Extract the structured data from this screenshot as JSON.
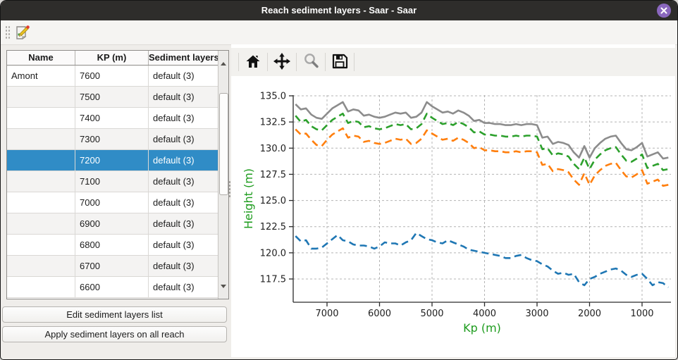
{
  "window": {
    "title": "Reach sediment layers - Saar - Saar"
  },
  "icons": {
    "window_close": "close-circle",
    "toolbar_edit": "edit-document-pencil",
    "nav": [
      "home",
      "pan-arrows",
      "zoom-magnifier",
      "save-floppy"
    ],
    "scroll_up": "arrow-up",
    "scroll_down": "arrow-down"
  },
  "table": {
    "headers": [
      "Name",
      "KP (m)",
      "Sediment layers"
    ],
    "selected_kp": "7200",
    "rows": [
      {
        "name": "Amont",
        "kp": "7600",
        "layers": "default (3)"
      },
      {
        "name": "",
        "kp": "7500",
        "layers": "default (3)"
      },
      {
        "name": "",
        "kp": "7400",
        "layers": "default (3)"
      },
      {
        "name": "",
        "kp": "7300",
        "layers": "default (3)"
      },
      {
        "name": "",
        "kp": "7200",
        "layers": "default (3)"
      },
      {
        "name": "",
        "kp": "7100",
        "layers": "default (3)"
      },
      {
        "name": "",
        "kp": "7000",
        "layers": "default (3)"
      },
      {
        "name": "",
        "kp": "6900",
        "layers": "default (3)"
      },
      {
        "name": "",
        "kp": "6800",
        "layers": "default (3)"
      },
      {
        "name": "",
        "kp": "6700",
        "layers": "default (3)"
      },
      {
        "name": "",
        "kp": "6600",
        "layers": "default (3)"
      }
    ]
  },
  "buttons": {
    "edit": "Edit sediment layers list",
    "apply": "Apply sediment layers on all reach"
  },
  "chart_data": {
    "type": "line",
    "title": "",
    "xlabel": "Kp (m)",
    "ylabel": "Height (m)",
    "label_color": "#1e9c1e",
    "grid": true,
    "x_axis_reversed": true,
    "xlim": [
      7650,
      480
    ],
    "ylim": [
      115.3,
      135.05
    ],
    "xticks": [
      7000,
      6000,
      5000,
      4000,
      3000,
      2000,
      1000
    ],
    "yticks": [
      135.0,
      132.5,
      130.0,
      127.5,
      125.0,
      122.5,
      120.0,
      117.5
    ],
    "x": [
      7600,
      7500,
      7400,
      7300,
      7200,
      7100,
      7000,
      6900,
      6800,
      6700,
      6600,
      6500,
      6400,
      6300,
      6200,
      6100,
      6000,
      5900,
      5800,
      5700,
      5600,
      5500,
      5400,
      5300,
      5200,
      5100,
      5000,
      4900,
      4800,
      4700,
      4600,
      4500,
      4400,
      4300,
      4200,
      4100,
      4000,
      3900,
      3800,
      3700,
      3600,
      3500,
      3400,
      3300,
      3200,
      3100,
      3000,
      2900,
      2800,
      2700,
      2600,
      2500,
      2400,
      2300,
      2200,
      2100,
      2000,
      1900,
      1800,
      1700,
      1600,
      1500,
      1400,
      1300,
      1200,
      1100,
      1000,
      900,
      800,
      700,
      600,
      500
    ],
    "series": [
      {
        "name": "blue-dashed-bottom",
        "color": "#1f77b4",
        "dashed": true,
        "values": [
          121.6,
          121.1,
          121.2,
          120.4,
          120.4,
          120.5,
          120.9,
          121.3,
          121.7,
          121.2,
          121.1,
          120.8,
          120.7,
          120.7,
          120.6,
          120.4,
          120.6,
          121.0,
          120.9,
          120.9,
          120.7,
          121.0,
          121.2,
          121.9,
          121.6,
          121.3,
          121.2,
          121.0,
          120.9,
          121.2,
          121.0,
          120.8,
          120.6,
          120.3,
          120.2,
          120.1,
          120.0,
          119.9,
          119.8,
          119.7,
          119.5,
          119.5,
          119.7,
          119.8,
          119.5,
          119.3,
          119.2,
          118.9,
          118.7,
          118.3,
          118.0,
          118.1,
          117.9,
          118.0,
          117.2,
          116.9,
          117.5,
          117.7,
          118.0,
          118.2,
          118.4,
          118.5,
          118.3,
          117.9,
          117.7,
          117.9,
          118.0,
          117.5,
          116.9,
          117.2,
          117.1,
          116.7
        ]
      },
      {
        "name": "orange-dashed",
        "color": "#ff7f0e",
        "dashed": true,
        "values": [
          131.8,
          131.3,
          131.4,
          130.8,
          130.3,
          130.2,
          130.8,
          131.3,
          131.6,
          131.9,
          131.0,
          131.2,
          131.1,
          130.6,
          130.7,
          130.5,
          130.4,
          130.5,
          130.7,
          130.9,
          130.8,
          130.9,
          130.4,
          130.5,
          130.9,
          131.7,
          131.4,
          131.1,
          130.8,
          130.9,
          130.7,
          131.0,
          130.8,
          130.5,
          130.0,
          130.1,
          129.8,
          129.8,
          129.7,
          129.7,
          129.6,
          129.6,
          129.7,
          129.6,
          129.7,
          129.7,
          129.6,
          128.4,
          128.5,
          127.8,
          128.0,
          127.9,
          127.7,
          127.0,
          126.5,
          127.6,
          126.5,
          127.4,
          127.9,
          128.3,
          128.5,
          128.6,
          127.9,
          127.3,
          127.2,
          127.5,
          127.9,
          126.6,
          126.8,
          127.0,
          126.4,
          126.5
        ]
      },
      {
        "name": "green-dashed",
        "color": "#2ca02c",
        "dashed": true,
        "values": [
          133.1,
          132.5,
          132.7,
          132.1,
          131.8,
          131.7,
          132.2,
          132.7,
          133.0,
          133.3,
          132.4,
          132.6,
          132.5,
          132.0,
          132.1,
          131.9,
          131.8,
          131.9,
          132.1,
          132.3,
          132.2,
          132.3,
          131.8,
          131.9,
          132.3,
          133.3,
          132.9,
          132.6,
          132.3,
          132.4,
          132.2,
          132.5,
          132.3,
          132.0,
          131.5,
          131.6,
          131.3,
          131.3,
          131.2,
          131.2,
          131.1,
          131.1,
          131.2,
          131.1,
          131.2,
          131.2,
          131.1,
          129.9,
          130.0,
          129.3,
          129.5,
          129.4,
          129.2,
          128.5,
          128.0,
          129.1,
          128.0,
          128.9,
          129.4,
          129.8,
          130.0,
          130.1,
          129.4,
          128.8,
          128.7,
          129.0,
          129.4,
          128.1,
          128.3,
          128.5,
          127.9,
          128.0
        ]
      },
      {
        "name": "gray-solid-top",
        "color": "#8c8c8c",
        "dashed": false,
        "values": [
          134.2,
          133.7,
          133.8,
          133.2,
          132.9,
          132.8,
          133.3,
          133.8,
          134.1,
          134.4,
          133.5,
          133.7,
          133.6,
          133.1,
          133.2,
          133.0,
          132.9,
          133.0,
          133.2,
          133.4,
          133.3,
          133.4,
          132.9,
          133.0,
          133.4,
          134.4,
          134.0,
          133.7,
          133.4,
          133.5,
          133.3,
          133.6,
          133.4,
          133.1,
          132.6,
          132.7,
          132.4,
          132.4,
          132.3,
          132.3,
          132.2,
          132.2,
          132.3,
          132.2,
          132.3,
          132.3,
          132.2,
          131.0,
          131.1,
          130.4,
          130.6,
          130.5,
          130.3,
          129.6,
          129.1,
          130.2,
          129.1,
          130.0,
          130.5,
          130.9,
          131.1,
          131.2,
          130.5,
          129.9,
          129.8,
          130.1,
          130.5,
          129.2,
          129.4,
          129.6,
          129.0,
          129.1
        ]
      }
    ]
  }
}
